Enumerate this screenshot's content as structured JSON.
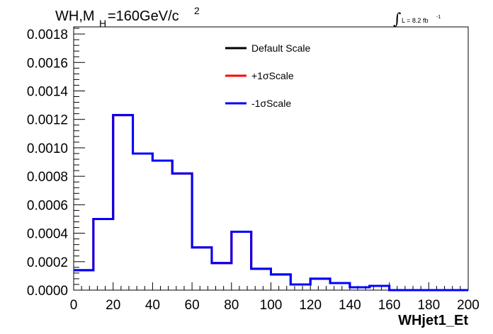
{
  "chart_data": {
    "type": "line",
    "title_main": "WH,M",
    "title_sub": "H",
    "title_rest": "=160GeV/c",
    "title_sup": "2",
    "lumi_text": "L = 8.2 fb",
    "lumi_sup": "-1",
    "xlabel": "WHjet1_Et",
    "ylabel": "",
    "xlim": [
      0,
      200
    ],
    "ylim": [
      0,
      0.00185
    ],
    "x_ticks": [
      "0",
      "20",
      "40",
      "60",
      "80",
      "100",
      "120",
      "140",
      "160",
      "180",
      "200"
    ],
    "y_ticks": [
      "0.0000",
      "0.0002",
      "0.0004",
      "0.0006",
      "0.0008",
      "0.0010",
      "0.0012",
      "0.0014",
      "0.0016",
      "0.0018"
    ],
    "bin_edges": [
      0,
      10,
      20,
      30,
      40,
      50,
      60,
      70,
      80,
      90,
      100,
      110,
      120,
      130,
      140,
      150,
      160,
      170,
      180,
      190,
      200
    ],
    "legend_position": "top-center",
    "grid": false,
    "series": [
      {
        "name": "Default Scale",
        "color": "#000000",
        "values": [
          0.00014,
          0.0005,
          0.00123,
          0.00096,
          0.00091,
          0.00082,
          0.0003,
          0.00019,
          0.00041,
          0.00015,
          0.00011,
          4e-05,
          8e-05,
          5e-05,
          2e-05,
          3e-05,
          0.0,
          0.0,
          0.0,
          0.0
        ]
      },
      {
        "name": "+1σScale",
        "color": "#ff0000",
        "values": [
          0.00014,
          0.0005,
          0.00123,
          0.00096,
          0.00091,
          0.00082,
          0.0003,
          0.00019,
          0.00041,
          0.00015,
          0.00011,
          4e-05,
          8e-05,
          5e-05,
          2e-05,
          3e-05,
          0.0,
          0.0,
          0.0,
          0.0
        ]
      },
      {
        "name": "-1σScale",
        "color": "#0000ff",
        "values": [
          0.00014,
          0.0005,
          0.00123,
          0.00096,
          0.00091,
          0.00082,
          0.0003,
          0.00019,
          0.00041,
          0.00015,
          0.00011,
          4e-05,
          8e-05,
          5e-05,
          2e-05,
          3e-05,
          0.0,
          0.0,
          0.0,
          0.0
        ]
      }
    ]
  }
}
